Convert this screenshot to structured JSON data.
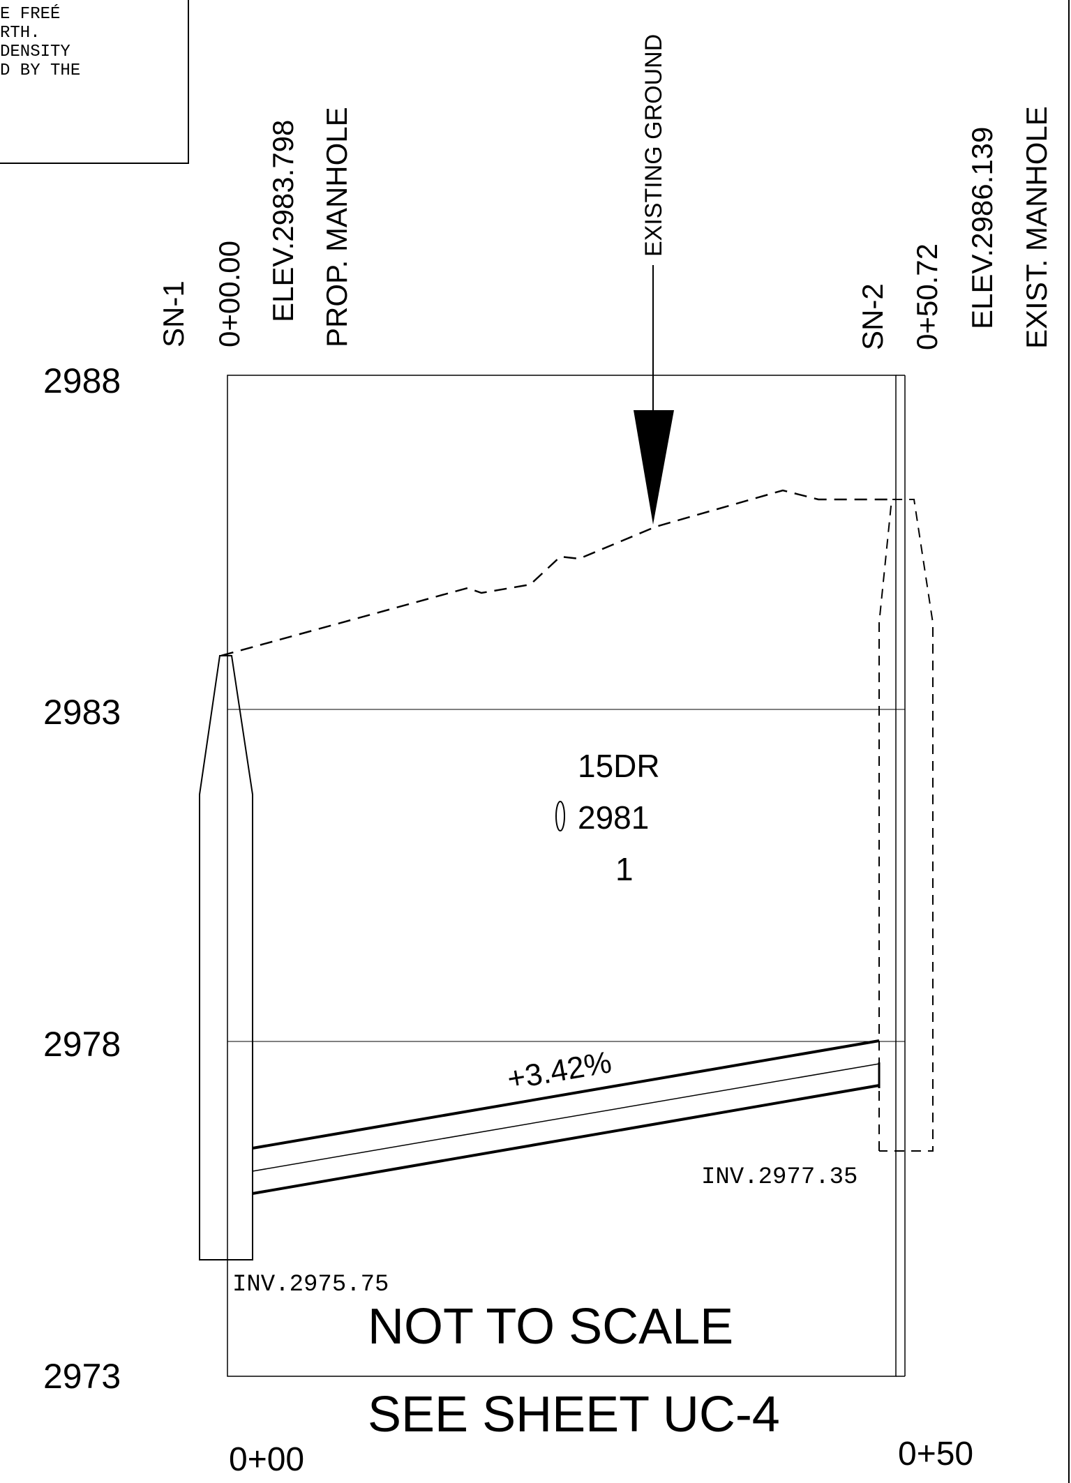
{
  "notes_box": {
    "lines": [
      "E FREÉ",
      "RTH.",
      "DENSITY",
      "D BY THE"
    ]
  },
  "axis": {
    "elevation_ticks": [
      "2988",
      "2983",
      "2978",
      "2973"
    ],
    "station_ticks": [
      "0+00",
      "0+50"
    ]
  },
  "manhole_left": {
    "id": "SN-1",
    "station": "0+00.00",
    "elevation": "ELEV.2983.798",
    "type": "PROP. MANHOLE",
    "invert": "INV.2975.75"
  },
  "manhole_right": {
    "id": "SN-2",
    "station": "0+50.72",
    "elevation": "ELEV.2986.139",
    "type": "EXIST. MANHOLE",
    "invert": "INV.2977.35"
  },
  "existing_ground_label": "EXISTING GROUND",
  "pipe": {
    "size_type": "15DR",
    "dr_value": "2981",
    "count": "1",
    "slope": "+3.42%"
  },
  "not_to_scale": "NOT TO SCALE",
  "see_sheet": "SEE SHEET UC-4"
}
